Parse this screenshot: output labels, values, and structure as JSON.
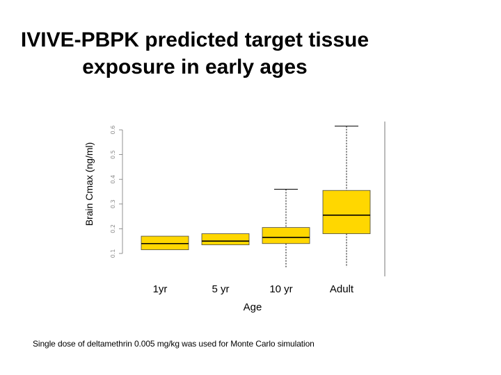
{
  "slide": {
    "title_line1": "IVIVE-PBPK predicted target tissue",
    "title_line2": "exposure in early ages",
    "footnote": "Single dose of deltamethrin 0.005 mg/kg was used for Monte Carlo simulation"
  },
  "chart_data": {
    "type": "box",
    "title": "",
    "xlabel": "Age",
    "ylabel": "Brain Cmax (ng/ml)",
    "categories": [
      "1yr",
      "5 yr",
      "10 yr",
      "Adult"
    ],
    "y_ticks": [
      0.1,
      0.2,
      0.3,
      0.4,
      0.5,
      0.6
    ],
    "ylim": [
      0.05,
      0.62
    ],
    "grid": false,
    "legend": "none",
    "box_color": "#FFD700",
    "boxes": [
      {
        "category": "1yr",
        "whisker_low": null,
        "q1": 0.115,
        "median": 0.14,
        "q3": 0.17,
        "whisker_high": null
      },
      {
        "category": "5 yr",
        "whisker_low": null,
        "q1": 0.135,
        "median": 0.15,
        "q3": 0.18,
        "whisker_high": null
      },
      {
        "category": "10 yr",
        "whisker_low": 0.04,
        "q1": 0.14,
        "median": 0.165,
        "q3": 0.205,
        "whisker_high": 0.36
      },
      {
        "category": "Adult",
        "whisker_low": 0.045,
        "q1": 0.18,
        "median": 0.255,
        "q3": 0.355,
        "whisker_high": 0.615
      }
    ]
  }
}
